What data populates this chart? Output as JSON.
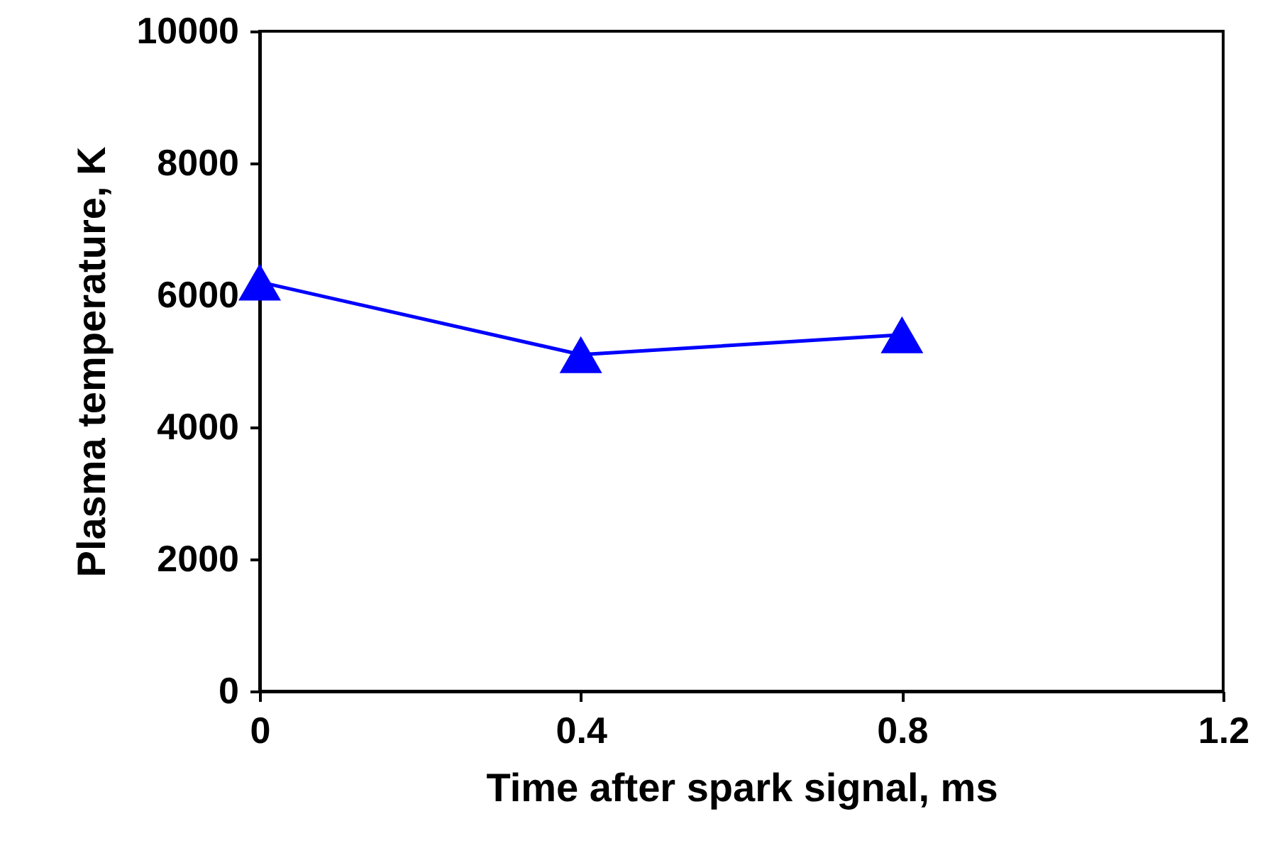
{
  "chart_data": {
    "type": "line",
    "xlabel": "Time after spark signal, ms",
    "ylabel": "Plasma temperature, K",
    "x": [
      0,
      0.4,
      0.8
    ],
    "series": [
      {
        "color": "#0000ff",
        "values": [
          6200,
          5100,
          5400
        ]
      }
    ],
    "xlim": [
      0,
      1.2
    ],
    "xticks": [
      0,
      0.4,
      0.8,
      1.2
    ],
    "ylim": [
      0,
      10000
    ],
    "yticks": [
      0,
      2000,
      4000,
      6000,
      8000,
      10000
    ],
    "grid": false,
    "marker": "triangle",
    "line_style": "solid"
  }
}
